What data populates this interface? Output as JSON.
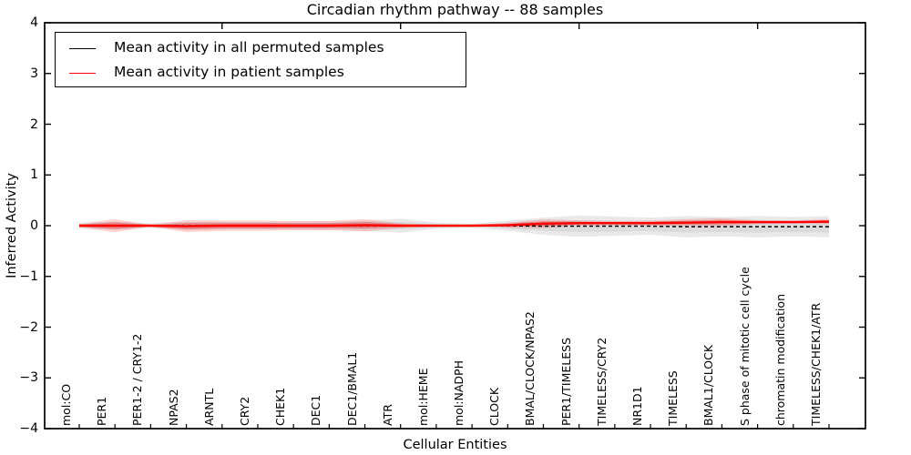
{
  "title": "Circadian rhythm pathway -- 88 samples",
  "legend": {
    "items": [
      {
        "label": "Mean activity in all permuted samples",
        "color": "#000000"
      },
      {
        "label": "Mean activity in patient samples",
        "color": "#ff0000"
      }
    ]
  },
  "colors": {
    "permuted_line": "#000000",
    "permuted_band": "#999999",
    "patient_line": "#ff0000",
    "patient_band": "#ff0000",
    "axis": "#000000"
  },
  "chart_data": {
    "type": "line",
    "title": "Circadian rhythm pathway -- 88 samples",
    "xlabel": "Cellular Entities",
    "ylabel": "Inferred Activity",
    "ylim": [
      -4,
      4
    ],
    "yticks": [
      4,
      3,
      2,
      1,
      0,
      -1,
      -2,
      -3,
      -4
    ],
    "grid": false,
    "legend_position": "upper left",
    "categories": [
      "mol:CO",
      "PER1",
      "PER1-2 / CRY1-2",
      "NPAS2",
      "ARNTL",
      "CRY2",
      "CHEK1",
      "DEC1",
      "DEC1/BMAL1",
      "ATR",
      "mol:HEME",
      "mol:NADPH",
      "CLOCK",
      "BMAL/CLOCK/NPAS2",
      "PER1/TIMELESS",
      "TIMELESS/CRY2",
      "NR1D1",
      "TIMELESS",
      "BMAL1/CLOCK",
      "S phase of mitotic cell cycle",
      "chromatin modification",
      "TIMELESS/CHEK1/ATR"
    ],
    "series": [
      {
        "name": "Mean activity in all permuted samples",
        "color": "#000000",
        "line_style": "dashed",
        "values": [
          0,
          0,
          0,
          0,
          0,
          0,
          0,
          0,
          0,
          0,
          0,
          0,
          0,
          -0.01,
          -0.01,
          -0.01,
          -0.01,
          -0.02,
          -0.02,
          -0.02,
          -0.02,
          -0.02
        ],
        "band_halfwidth": [
          0.06,
          0.08,
          0.05,
          0.08,
          0.08,
          0.08,
          0.08,
          0.09,
          0.1,
          0.14,
          0.06,
          0.04,
          0.1,
          0.17,
          0.21,
          0.19,
          0.17,
          0.21,
          0.19,
          0.21,
          0.19,
          0.21
        ]
      },
      {
        "name": "Mean activity in patient samples",
        "color": "#ff0000",
        "line_style": "solid",
        "values": [
          0,
          0,
          0,
          -0.01,
          0,
          0,
          0,
          0,
          0.01,
          0,
          0,
          0,
          0.01,
          0.04,
          0.05,
          0.05,
          0.05,
          0.06,
          0.07,
          0.07,
          0.07,
          0.08
        ],
        "band_halfwidth": [
          0.03,
          0.13,
          0.02,
          0.12,
          0.1,
          0.1,
          0.09,
          0.09,
          0.12,
          0.05,
          0.02,
          0.01,
          0.05,
          0.09,
          0.05,
          0.04,
          0.05,
          0.07,
          0.08,
          0.04,
          0.03,
          0.05
        ]
      }
    ]
  }
}
